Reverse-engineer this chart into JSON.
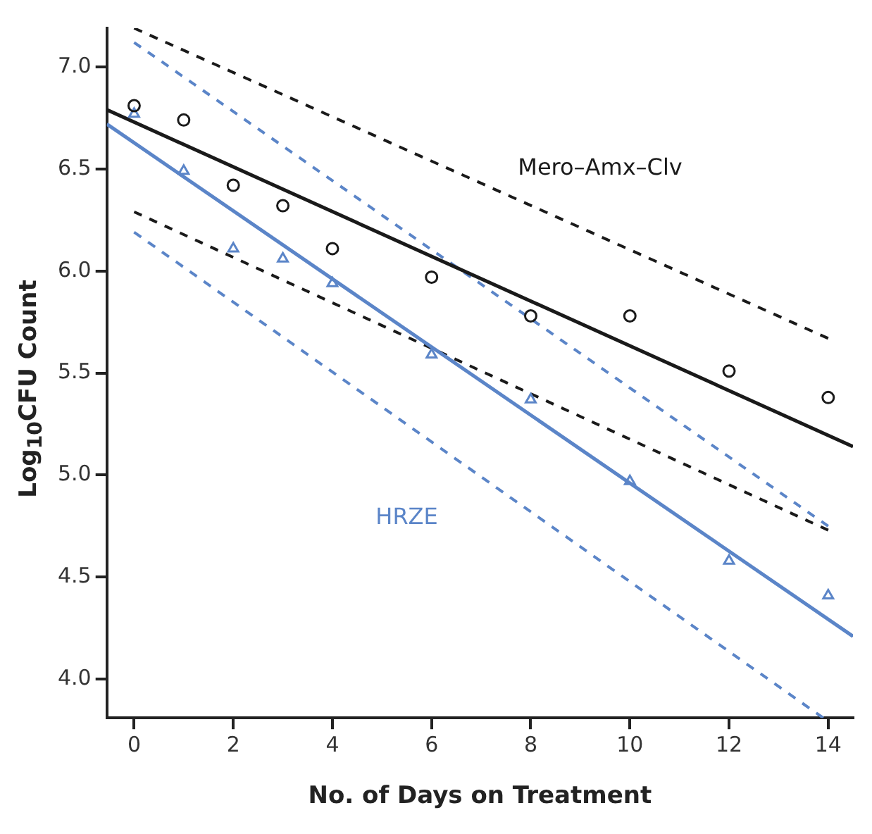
{
  "chart_data": {
    "type": "scatter",
    "xlabel": "No. of Days on Treatment",
    "ylabel": "Log$_{10}$CFU Count",
    "xlim": [
      -0.55,
      14.5
    ],
    "ylim": [
      3.81,
      7.19
    ],
    "xticks": [
      0,
      2,
      4,
      6,
      8,
      10,
      12,
      14
    ],
    "yticks": [
      {
        "value": 4,
        "label": "4.0"
      },
      {
        "value": 4.5,
        "label": "4.5"
      },
      {
        "value": 5,
        "label": "5.0"
      },
      {
        "value": 5.5,
        "label": "5.5"
      },
      {
        "value": 6,
        "label": "6.0"
      },
      {
        "value": 6.5,
        "label": "6.5"
      },
      {
        "value": 7,
        "label": "7.0"
      }
    ],
    "grid": false,
    "legend": false,
    "series": [
      {
        "name": "Mero–Amx–Clv",
        "color": "#1a1a1a",
        "marker": "circle",
        "x": [
          0,
          1,
          2,
          3,
          4,
          6,
          8,
          10,
          12,
          14
        ],
        "values": [
          6.81,
          6.74,
          6.42,
          6.32,
          6.11,
          5.97,
          5.78,
          5.78,
          5.51,
          5.38
        ]
      },
      {
        "name": "HRZE",
        "color": "#5b85c8",
        "marker": "triangle",
        "x": [
          0,
          1,
          2,
          3,
          4,
          6,
          8,
          10,
          12,
          14
        ],
        "values": [
          6.77,
          6.49,
          6.11,
          6.06,
          5.94,
          5.59,
          5.37,
          4.97,
          4.58,
          4.41
        ]
      },
      {
        "type": "line",
        "color": "#1a1a1a",
        "line_style": "solid",
        "marker": "none",
        "x": [
          -0.55,
          14.5
        ],
        "values": [
          6.79,
          5.14
        ]
      },
      {
        "type": "line",
        "color": "#5b85c8",
        "line_style": "solid",
        "marker": "none",
        "x": [
          -0.55,
          14.5
        ],
        "values": [
          6.72,
          4.21
        ]
      },
      {
        "type": "line",
        "color": "#1a1a1a",
        "line_style": "dashed",
        "marker": "none",
        "x": [
          0,
          14
        ],
        "values": [
          7.19,
          5.67
        ]
      },
      {
        "type": "line",
        "color": "#1a1a1a",
        "line_style": "dashed",
        "marker": "none",
        "x": [
          0,
          14
        ],
        "values": [
          6.29,
          4.73
        ]
      },
      {
        "type": "line",
        "color": "#5b85c8",
        "line_style": "dashed",
        "marker": "none",
        "x": [
          0,
          14
        ],
        "values": [
          7.12,
          4.75
        ]
      },
      {
        "type": "line",
        "color": "#5b85c8",
        "line_style": "dashed",
        "marker": "none",
        "x": [
          0,
          13.9
        ],
        "values": [
          6.19,
          3.81
        ]
      }
    ]
  }
}
